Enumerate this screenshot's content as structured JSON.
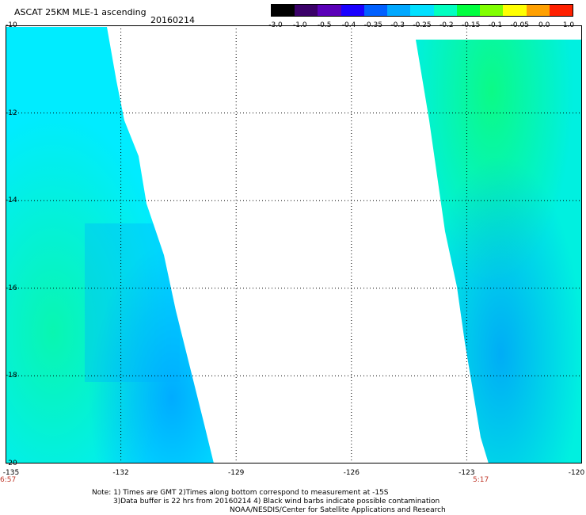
{
  "header": {
    "title": "ASCAT 25KM MLE-1 ascending",
    "date": "20160214"
  },
  "colorbar": {
    "labels": [
      "-3.0",
      "-1.0",
      "-0.5",
      "-0.4",
      "-0.35",
      "-0.3",
      "-0.25",
      "-0.2",
      "-0.15",
      "-0.1",
      "-0.05",
      "0.0",
      "1.0"
    ],
    "colors": [
      "#000000",
      "#3a0068",
      "#5a00b8",
      "#1a00ff",
      "#0060ff",
      "#00a8ff",
      "#00e0ff",
      "#00ffc0",
      "#00ff40",
      "#80ff00",
      "#ffff00",
      "#ffa000",
      "#ff2000"
    ]
  },
  "map": {
    "lat_labels": [
      "-10",
      "-12",
      "-14",
      "-16",
      "-18",
      "-20"
    ],
    "lon_labels": [
      "-135",
      "-132",
      "-129",
      "-126",
      "-123",
      "-120"
    ],
    "swath_left_color": "#00e8ff",
    "swath_right_color": "#00f0d0",
    "green_patch_color": "#10ff70",
    "blue_patch_color": "#0090ff"
  },
  "times": {
    "left": "6:57",
    "right": "5:17"
  },
  "notes": {
    "line1": "Note: 1) Times are GMT 2)Times along bottom correspond to measurement at -15S",
    "line2": "3)Data buffer is 22 hrs from 20160214 4) Black wind barbs indicate possible contamination",
    "line3": "NOAA/NESDIS/Center for Satellite Applications and Research"
  }
}
